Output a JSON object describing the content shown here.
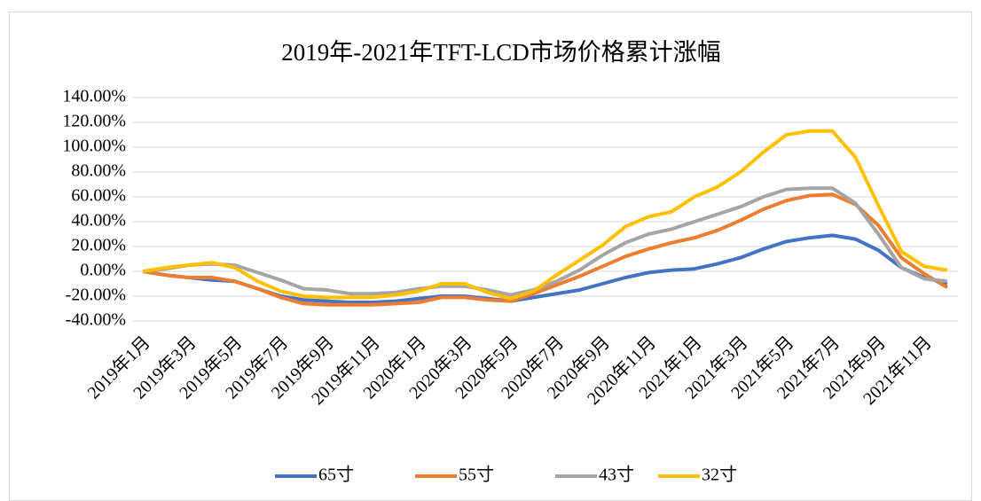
{
  "chart_data": {
    "type": "line",
    "title": "2019年-2021年TFT-LCD市场价格累计涨幅",
    "categories": [
      "2019年1月",
      null,
      "2019年3月",
      null,
      "2019年5月",
      null,
      "2019年7月",
      null,
      "2019年9月",
      null,
      "2019年11月",
      null,
      "2020年1月",
      null,
      "2020年3月",
      null,
      "2020年5月",
      null,
      "2020年7月",
      null,
      "2020年9月",
      null,
      "2020年11月",
      null,
      "2021年1月",
      null,
      "2021年3月",
      null,
      "2021年5月",
      null,
      "2021年7月",
      null,
      "2021年9月",
      null,
      "2021年11月",
      null
    ],
    "series": [
      {
        "name": "65寸",
        "color": "#4472c4",
        "values": [
          0,
          -3,
          -5,
          -7,
          -8,
          -14,
          -20,
          -23,
          -24,
          -25,
          -25,
          -24,
          -22,
          -20,
          -20,
          -22,
          -24,
          -21,
          -18,
          -15,
          -10,
          -5,
          -1,
          1,
          2,
          6,
          11,
          18,
          24,
          27,
          29,
          26,
          17,
          3,
          -5,
          -10
        ]
      },
      {
        "name": "55寸",
        "color": "#ed7d31",
        "values": [
          0,
          -3,
          -5,
          -5,
          -8,
          -14,
          -21,
          -26,
          -27,
          -27,
          -27,
          -26,
          -25,
          -21,
          -21,
          -23,
          -24,
          -18,
          -11,
          -4,
          4,
          12,
          18,
          23,
          27,
          33,
          41,
          50,
          57,
          61,
          62,
          54,
          37,
          11,
          -2,
          -13
        ]
      },
      {
        "name": "43寸",
        "color": "#a5a5a5",
        "values": [
          0,
          2,
          5,
          6,
          5,
          -1,
          -7,
          -14,
          -15,
          -18,
          -18,
          -17,
          -14,
          -12,
          -12,
          -15,
          -19,
          -15,
          -8,
          1,
          13,
          23,
          30,
          34,
          40,
          46,
          52,
          60,
          66,
          67,
          67,
          55,
          30,
          3,
          -6,
          -8
        ]
      },
      {
        "name": "32寸",
        "color": "#ffc000",
        "values": [
          0,
          3,
          5,
          7,
          3,
          -8,
          -16,
          -20,
          -21,
          -21,
          -21,
          -19,
          -16,
          -10,
          -10,
          -17,
          -22,
          -16,
          -3,
          9,
          21,
          36,
          44,
          48,
          60,
          68,
          80,
          96,
          110,
          113,
          113,
          92,
          53,
          16,
          4,
          1
        ]
      }
    ],
    "ylim": [
      -40,
      140
    ],
    "yticks": [
      {
        "value": -40,
        "label": "-40.00%"
      },
      {
        "value": -20,
        "label": "-20.00%"
      },
      {
        "value": 0,
        "label": "0.00%"
      },
      {
        "value": 20,
        "label": "20.00%"
      },
      {
        "value": 40,
        "label": "40.00%"
      },
      {
        "value": 60,
        "label": "60.00%"
      },
      {
        "value": 80,
        "label": "80.00%"
      },
      {
        "value": 100,
        "label": "100.00%"
      },
      {
        "value": 120,
        "label": "120.00%"
      },
      {
        "value": 140,
        "label": "140.00%"
      }
    ],
    "grid": true,
    "legend": "bottom"
  }
}
